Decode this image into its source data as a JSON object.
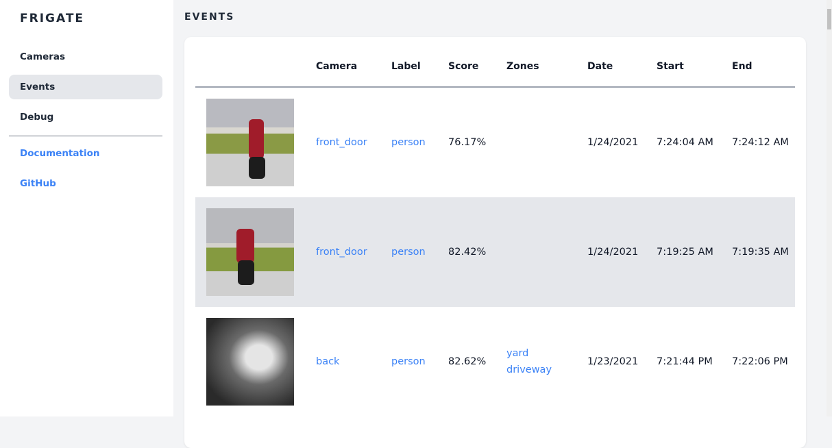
{
  "sidebar": {
    "brand": "FRIGATE",
    "items": [
      {
        "label": "Cameras"
      },
      {
        "label": "Events",
        "active": true
      },
      {
        "label": "Debug"
      }
    ],
    "links": [
      {
        "label": "Documentation"
      },
      {
        "label": "GitHub"
      }
    ]
  },
  "main": {
    "title": "EVENTS",
    "columns": [
      "Camera",
      "Label",
      "Score",
      "Zones",
      "Date",
      "Start",
      "End"
    ],
    "rows": [
      {
        "camera": "front_door",
        "label": "person",
        "score": "76.17%",
        "zones": [
          "",
          ""
        ],
        "date": "1/24/2021",
        "start": "7:24:04 AM",
        "end": "7:24:12 AM"
      },
      {
        "camera": "front_door",
        "label": "person",
        "score": "82.42%",
        "zones": [
          "",
          ""
        ],
        "date": "1/24/2021",
        "start": "7:19:25 AM",
        "end": "7:19:35 AM"
      },
      {
        "camera": "back",
        "label": "person",
        "score": "82.62%",
        "zones": [
          "yard",
          "driveway"
        ],
        "date": "1/23/2021",
        "start": "7:21:44 PM",
        "end": "7:22:06 PM"
      }
    ]
  },
  "colors": {
    "accent": "#3b82f6",
    "active_bg": "#e5e7eb",
    "page_bg": "#f3f4f6"
  }
}
